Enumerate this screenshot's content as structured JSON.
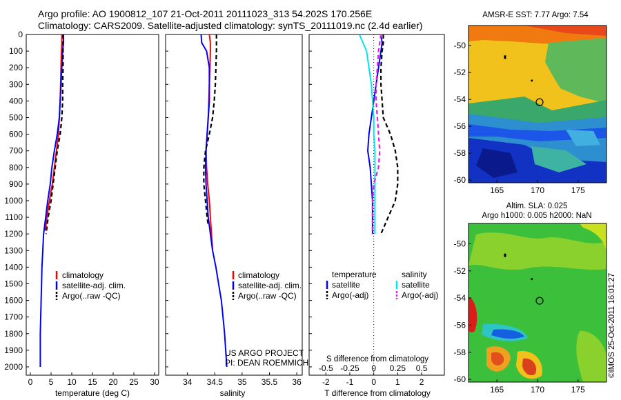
{
  "header": {
    "line1": "Argo profile: AO 1900812_107 21-Oct-2011 20111023_313 54.202S 170.256E",
    "line2": "Climatology: CARS2009. Satellite-adjusted climatology: synTS_20111019.nc (2.4d earlier)"
  },
  "credit": {
    "project": "US ARGO PROJECT",
    "pi": "PI: DEAN ROEMMICH",
    "stamp": "©IMOS 25-Oct-2011 16:01:27"
  },
  "colors": {
    "climatology": "#ff0000",
    "satellite": "#0000ff",
    "argo": "#000000",
    "satellite_salinity": "#00e5ee",
    "argo_salinity": "#e020e0"
  },
  "chart_data": [
    {
      "type": "line",
      "panel": "temperature",
      "xlabel": "temperature (deg C)",
      "ylabel": "",
      "xlim": [
        -1,
        31
      ],
      "ylim": [
        0,
        2050
      ],
      "xticks": [
        0,
        5,
        10,
        15,
        20,
        25,
        30
      ],
      "yticks": [
        0,
        100,
        200,
        300,
        400,
        500,
        600,
        700,
        800,
        900,
        1000,
        1100,
        1200,
        1300,
        1400,
        1500,
        1600,
        1700,
        1800,
        1900,
        2000
      ],
      "y_reversed": true,
      "legend": [
        "climatology",
        "satellite-adj. clim.",
        "Argo(..raw -QC)"
      ],
      "series": [
        {
          "name": "climatology",
          "x": [
            7.6,
            7.6,
            7.5,
            7.4,
            7.3,
            7.2,
            7.0,
            6.8,
            6.3,
            5.8,
            5.3,
            4.6,
            4.0,
            3.6
          ],
          "y": [
            0,
            50,
            100,
            200,
            300,
            400,
            500,
            600,
            700,
            800,
            900,
            1000,
            1100,
            1180
          ]
        },
        {
          "name": "satellite-adj. clim.",
          "x": [
            8.0,
            8.0,
            7.8,
            7.6,
            7.4,
            7.2,
            7.0,
            6.5,
            5.8,
            5.2,
            4.8,
            4.2,
            3.7,
            3.2,
            3.0,
            2.8,
            2.7,
            2.6,
            2.5,
            2.4,
            2.4
          ],
          "y": [
            0,
            50,
            100,
            200,
            300,
            400,
            500,
            600,
            700,
            800,
            900,
            1000,
            1100,
            1200,
            1300,
            1400,
            1500,
            1600,
            1700,
            1800,
            2000
          ]
        },
        {
          "name": "Argo(..raw -QC)",
          "x": [
            7.9,
            7.9,
            7.9,
            7.9,
            7.8,
            7.8,
            7.6,
            7.2,
            6.5,
            6.0,
            5.5,
            5.0,
            4.3,
            3.8
          ],
          "y": [
            0,
            50,
            100,
            200,
            300,
            400,
            500,
            600,
            700,
            800,
            900,
            1000,
            1100,
            1200
          ]
        }
      ]
    },
    {
      "type": "line",
      "panel": "salinity",
      "xlabel": "salinity",
      "xlim": [
        33.6,
        36.1
      ],
      "ylim": [
        0,
        2050
      ],
      "xticks": [
        34,
        34.5,
        35,
        35.5,
        36
      ],
      "y_reversed": true,
      "legend": [
        "climatology",
        "satellite-adj. clim.",
        "Argo(..raw -QC)"
      ],
      "series": [
        {
          "name": "climatology",
          "x": [
            34.4,
            34.42,
            34.42,
            34.41,
            34.4,
            34.39,
            34.38,
            34.36,
            34.34,
            34.35,
            34.37,
            34.4,
            34.42,
            34.44,
            34.46
          ],
          "y": [
            0,
            50,
            100,
            200,
            300,
            400,
            500,
            600,
            700,
            800,
            900,
            1000,
            1100,
            1200,
            1300
          ]
        },
        {
          "name": "satellite-adj. clim.",
          "x": [
            34.25,
            34.26,
            34.35,
            34.4,
            34.4,
            34.4,
            34.38,
            34.36,
            34.34,
            34.33,
            34.34,
            34.36,
            34.38,
            34.42,
            34.46,
            34.52,
            34.57,
            34.62,
            34.65,
            34.68,
            34.72
          ],
          "y": [
            0,
            50,
            100,
            200,
            300,
            400,
            500,
            600,
            700,
            800,
            900,
            1000,
            1100,
            1200,
            1300,
            1400,
            1500,
            1600,
            1700,
            1800,
            2000
          ]
        },
        {
          "name": "Argo(..raw -QC)",
          "x": [
            34.53,
            34.53,
            34.53,
            34.52,
            34.51,
            34.49,
            34.46,
            34.4,
            34.33,
            34.3,
            34.3,
            34.33,
            34.36,
            34.38
          ],
          "y": [
            0,
            50,
            100,
            200,
            300,
            400,
            500,
            600,
            700,
            800,
            900,
            1000,
            1100,
            1150
          ]
        }
      ]
    },
    {
      "type": "line",
      "panel": "difference",
      "xlabel": "T difference from climatology",
      "xlabel_top": "S difference from climatology",
      "xlim": [
        -2.7,
        2.95
      ],
      "ylim": [
        0,
        2050
      ],
      "xticks": [
        -2,
        -1,
        0,
        1,
        2
      ],
      "xticks_S": [
        "-0.5",
        "-0.25",
        "0",
        "0.25",
        "0.5"
      ],
      "y_reversed": true,
      "legend_groups": [
        "temperature",
        "salinity"
      ],
      "legend": [
        "satellite",
        "Argo(-adj)",
        "satellite",
        "Argo(-adj)"
      ],
      "series": [
        {
          "name": "satellite",
          "group": "temperature",
          "x": [
            0.3,
            0.35,
            0.3,
            0.2,
            0.1,
            0.0,
            -0.1,
            -0.2,
            -0.25,
            -0.15,
            -0.1,
            -0.05,
            -0.05,
            -0.05
          ],
          "y": [
            0,
            50,
            100,
            200,
            300,
            400,
            500,
            600,
            700,
            800,
            900,
            1000,
            1100,
            1200
          ]
        },
        {
          "name": "Argo(-adj)",
          "group": "temperature",
          "x": [
            0.4,
            0.4,
            0.35,
            0.3,
            0.3,
            0.35,
            0.4,
            0.7,
            0.9,
            1.0,
            1.0,
            0.9,
            0.6,
            0.3
          ],
          "y": [
            0,
            50,
            100,
            200,
            300,
            400,
            500,
            600,
            700,
            800,
            900,
            1000,
            1100,
            1200
          ]
        },
        {
          "name": "satellite",
          "group": "salinity",
          "x": [
            -0.6,
            -0.45,
            -0.3,
            -0.2,
            -0.1,
            -0.05,
            0.0,
            0.0,
            0.05,
            0.05,
            0.05,
            0.05,
            0.05,
            0.05
          ],
          "y": [
            0,
            50,
            100,
            200,
            300,
            400,
            500,
            600,
            700,
            800,
            900,
            1000,
            1100,
            1200
          ]
        },
        {
          "name": "Argo(-adj)",
          "group": "salinity",
          "x": [
            0.3,
            0.25,
            0.2,
            0.15,
            0.1,
            0.1,
            0.15,
            0.2,
            0.25,
            0.2,
            0.0,
            -0.05,
            -0.05,
            -0.05
          ],
          "y": [
            0,
            50,
            100,
            200,
            300,
            400,
            500,
            600,
            700,
            800,
            900,
            1000,
            1100,
            1200
          ]
        }
      ]
    },
    {
      "type": "heatmap",
      "panel": "amsre_sst_map",
      "title": "AMSR-E SST: 7.77 Argo: 7.54",
      "xlim": [
        161.5,
        178.5
      ],
      "ylim": [
        -60.2,
        -48.5
      ],
      "xticks": [
        165,
        170,
        175
      ],
      "yticks": [
        -50,
        -52,
        -54,
        -56,
        -58,
        -60
      ],
      "argo_position": [
        170.256,
        -54.202
      ]
    },
    {
      "type": "heatmap",
      "panel": "altimetry_sla_map",
      "title_lines": [
        "Altim. SLA: 0.025",
        "Argo h1000: 0.005 h2000: NaN"
      ],
      "xlim": [
        161.5,
        178.5
      ],
      "ylim": [
        -60.2,
        -48.5
      ],
      "xticks": [
        165,
        170,
        175
      ],
      "yticks": [
        -50,
        -52,
        -54,
        -56,
        -58,
        -60
      ],
      "argo_position": [
        170.256,
        -54.202
      ]
    }
  ]
}
